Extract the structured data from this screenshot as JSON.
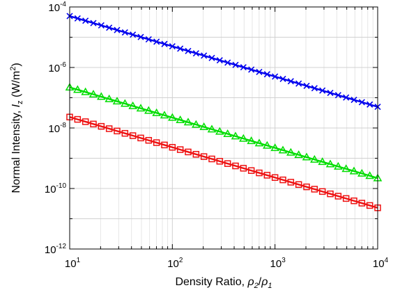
{
  "chart_data": {
    "type": "line",
    "title": "",
    "xlabel": {
      "text": "Density Ratio, ",
      "math": [
        {
          "text": "ρ",
          "italic": true
        },
        {
          "text": "2",
          "italic": true,
          "sub": true
        },
        {
          "text": "/",
          "italic": false
        },
        {
          "text": "ρ",
          "italic": true
        },
        {
          "text": "1",
          "italic": true,
          "sub": true
        }
      ]
    },
    "ylabel": {
      "parts": [
        {
          "text": "Normal Intensity, "
        },
        {
          "text": "I",
          "italic": true
        },
        {
          "text": "z",
          "sub": true
        },
        {
          "text": " (W/m"
        },
        {
          "text": "2",
          "sup": true
        },
        {
          "text": ")"
        }
      ]
    },
    "x_scale": "log",
    "y_scale": "log",
    "xlim": [
      10,
      10000
    ],
    "ylim": [
      1e-12,
      0.0001
    ],
    "x_ticks": [
      {
        "value": 10,
        "base": "10",
        "exp": "1"
      },
      {
        "value": 100,
        "base": "10",
        "exp": "2"
      },
      {
        "value": 1000,
        "base": "10",
        "exp": "3"
      },
      {
        "value": 10000,
        "base": "10",
        "exp": "4"
      }
    ],
    "y_ticks": [
      {
        "value": 1e-12,
        "base": "10",
        "exp": "-12"
      },
      {
        "value": 1e-10,
        "base": "10",
        "exp": "-10"
      },
      {
        "value": 1e-08,
        "base": "10",
        "exp": "-8"
      },
      {
        "value": 1e-06,
        "base": "10",
        "exp": "-6"
      },
      {
        "value": 0.0001,
        "base": "10",
        "exp": "-4"
      }
    ],
    "grid": true,
    "points_per_series": 40,
    "series": [
      {
        "marker": "x",
        "color": "#0000ee",
        "x_range": [
          10,
          10000
        ],
        "y_range": [
          5e-05,
          5e-08
        ]
      },
      {
        "marker": "triangle",
        "color": "#00dd00",
        "x_range": [
          10,
          10000
        ],
        "y_range": [
          2.2e-07,
          2.2e-10
        ]
      },
      {
        "marker": "square",
        "color": "#ee1111",
        "x_range": [
          10,
          10000
        ],
        "y_range": [
          2.3e-08,
          2.3e-11
        ]
      }
    ]
  }
}
